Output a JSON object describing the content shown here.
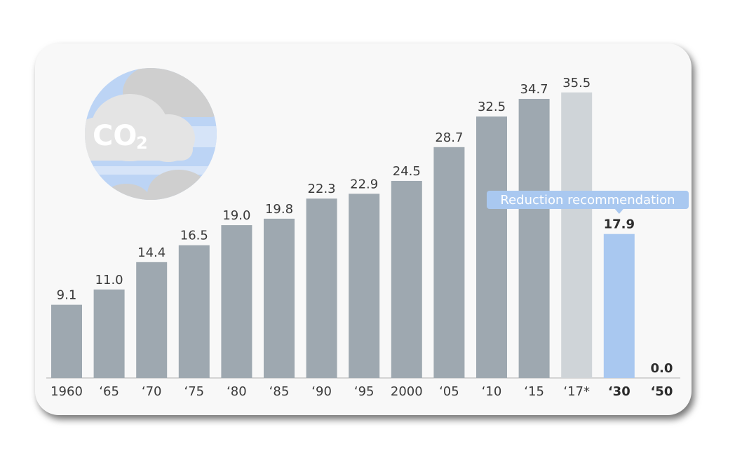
{
  "chart_data": {
    "type": "bar",
    "title": "",
    "xlabel": "",
    "ylabel": "",
    "ylim": [
      0,
      40
    ],
    "grid": false,
    "legend": "none",
    "categories": [
      "1960",
      "‘65",
      "‘70",
      "‘75",
      "‘80",
      "‘85",
      "‘90",
      "‘95",
      "2000",
      "‘05",
      "‘10",
      "‘15",
      "‘17*",
      "‘30",
      "‘50"
    ],
    "values": [
      9.1,
      11.0,
      14.4,
      16.5,
      19.0,
      19.8,
      22.3,
      22.9,
      24.5,
      28.7,
      32.5,
      34.7,
      35.5,
      17.9,
      0.0
    ],
    "value_labels": [
      "9.1",
      "11.0",
      "14.4",
      "16.5",
      "19.0",
      "19.8",
      "22.3",
      "22.9",
      "24.5",
      "28.7",
      "32.5",
      "34.7",
      "35.5",
      "17.9",
      "0.0"
    ],
    "bar_kind": [
      "historic",
      "historic",
      "historic",
      "historic",
      "historic",
      "historic",
      "historic",
      "historic",
      "historic",
      "historic",
      "historic",
      "historic",
      "estimate",
      "target",
      "target"
    ],
    "emphasized": [
      false,
      false,
      false,
      false,
      false,
      false,
      false,
      false,
      false,
      false,
      false,
      false,
      false,
      true,
      true
    ],
    "annotation": "Reduction recommendation",
    "annotation_category_index": 13,
    "colors": {
      "historic": "#9ea8b0",
      "estimate": "#cfd4d8",
      "target": "#a9c8f0",
      "callout": "#a9c8f0",
      "axis": "#c8c8c8"
    }
  },
  "illustration": {
    "label_main": "CO",
    "label_sub": "2",
    "icon": "co2-clouds-icon"
  }
}
